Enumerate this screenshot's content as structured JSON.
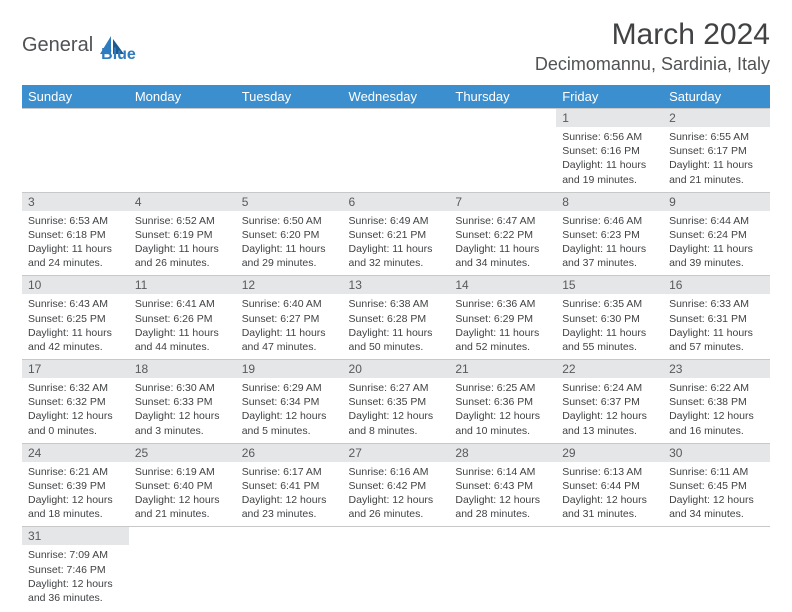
{
  "logo": {
    "name1": "General",
    "name2": "Blue"
  },
  "title": "March 2024",
  "location": "Decimomannu, Sardinia, Italy",
  "colors": {
    "header_bg": "#3b8fce",
    "header_text": "#ffffff",
    "daynum_bg": "#e4e6e8",
    "text": "#404244",
    "border": "#c8c8c8"
  },
  "weekdays": [
    "Sunday",
    "Monday",
    "Tuesday",
    "Wednesday",
    "Thursday",
    "Friday",
    "Saturday"
  ],
  "weeks": [
    [
      null,
      null,
      null,
      null,
      null,
      {
        "d": "1",
        "sr": "6:56 AM",
        "ss": "6:16 PM",
        "dl1": "11 hours",
        "dl2": "and 19 minutes."
      },
      {
        "d": "2",
        "sr": "6:55 AM",
        "ss": "6:17 PM",
        "dl1": "11 hours",
        "dl2": "and 21 minutes."
      }
    ],
    [
      {
        "d": "3",
        "sr": "6:53 AM",
        "ss": "6:18 PM",
        "dl1": "11 hours",
        "dl2": "and 24 minutes."
      },
      {
        "d": "4",
        "sr": "6:52 AM",
        "ss": "6:19 PM",
        "dl1": "11 hours",
        "dl2": "and 26 minutes."
      },
      {
        "d": "5",
        "sr": "6:50 AM",
        "ss": "6:20 PM",
        "dl1": "11 hours",
        "dl2": "and 29 minutes."
      },
      {
        "d": "6",
        "sr": "6:49 AM",
        "ss": "6:21 PM",
        "dl1": "11 hours",
        "dl2": "and 32 minutes."
      },
      {
        "d": "7",
        "sr": "6:47 AM",
        "ss": "6:22 PM",
        "dl1": "11 hours",
        "dl2": "and 34 minutes."
      },
      {
        "d": "8",
        "sr": "6:46 AM",
        "ss": "6:23 PM",
        "dl1": "11 hours",
        "dl2": "and 37 minutes."
      },
      {
        "d": "9",
        "sr": "6:44 AM",
        "ss": "6:24 PM",
        "dl1": "11 hours",
        "dl2": "and 39 minutes."
      }
    ],
    [
      {
        "d": "10",
        "sr": "6:43 AM",
        "ss": "6:25 PM",
        "dl1": "11 hours",
        "dl2": "and 42 minutes."
      },
      {
        "d": "11",
        "sr": "6:41 AM",
        "ss": "6:26 PM",
        "dl1": "11 hours",
        "dl2": "and 44 minutes."
      },
      {
        "d": "12",
        "sr": "6:40 AM",
        "ss": "6:27 PM",
        "dl1": "11 hours",
        "dl2": "and 47 minutes."
      },
      {
        "d": "13",
        "sr": "6:38 AM",
        "ss": "6:28 PM",
        "dl1": "11 hours",
        "dl2": "and 50 minutes."
      },
      {
        "d": "14",
        "sr": "6:36 AM",
        "ss": "6:29 PM",
        "dl1": "11 hours",
        "dl2": "and 52 minutes."
      },
      {
        "d": "15",
        "sr": "6:35 AM",
        "ss": "6:30 PM",
        "dl1": "11 hours",
        "dl2": "and 55 minutes."
      },
      {
        "d": "16",
        "sr": "6:33 AM",
        "ss": "6:31 PM",
        "dl1": "11 hours",
        "dl2": "and 57 minutes."
      }
    ],
    [
      {
        "d": "17",
        "sr": "6:32 AM",
        "ss": "6:32 PM",
        "dl1": "12 hours",
        "dl2": "and 0 minutes."
      },
      {
        "d": "18",
        "sr": "6:30 AM",
        "ss": "6:33 PM",
        "dl1": "12 hours",
        "dl2": "and 3 minutes."
      },
      {
        "d": "19",
        "sr": "6:29 AM",
        "ss": "6:34 PM",
        "dl1": "12 hours",
        "dl2": "and 5 minutes."
      },
      {
        "d": "20",
        "sr": "6:27 AM",
        "ss": "6:35 PM",
        "dl1": "12 hours",
        "dl2": "and 8 minutes."
      },
      {
        "d": "21",
        "sr": "6:25 AM",
        "ss": "6:36 PM",
        "dl1": "12 hours",
        "dl2": "and 10 minutes."
      },
      {
        "d": "22",
        "sr": "6:24 AM",
        "ss": "6:37 PM",
        "dl1": "12 hours",
        "dl2": "and 13 minutes."
      },
      {
        "d": "23",
        "sr": "6:22 AM",
        "ss": "6:38 PM",
        "dl1": "12 hours",
        "dl2": "and 16 minutes."
      }
    ],
    [
      {
        "d": "24",
        "sr": "6:21 AM",
        "ss": "6:39 PM",
        "dl1": "12 hours",
        "dl2": "and 18 minutes."
      },
      {
        "d": "25",
        "sr": "6:19 AM",
        "ss": "6:40 PM",
        "dl1": "12 hours",
        "dl2": "and 21 minutes."
      },
      {
        "d": "26",
        "sr": "6:17 AM",
        "ss": "6:41 PM",
        "dl1": "12 hours",
        "dl2": "and 23 minutes."
      },
      {
        "d": "27",
        "sr": "6:16 AM",
        "ss": "6:42 PM",
        "dl1": "12 hours",
        "dl2": "and 26 minutes."
      },
      {
        "d": "28",
        "sr": "6:14 AM",
        "ss": "6:43 PM",
        "dl1": "12 hours",
        "dl2": "and 28 minutes."
      },
      {
        "d": "29",
        "sr": "6:13 AM",
        "ss": "6:44 PM",
        "dl1": "12 hours",
        "dl2": "and 31 minutes."
      },
      {
        "d": "30",
        "sr": "6:11 AM",
        "ss": "6:45 PM",
        "dl1": "12 hours",
        "dl2": "and 34 minutes."
      }
    ],
    [
      {
        "d": "31",
        "sr": "7:09 AM",
        "ss": "7:46 PM",
        "dl1": "12 hours",
        "dl2": "and 36 minutes."
      },
      null,
      null,
      null,
      null,
      null,
      null
    ]
  ],
  "labels": {
    "sunrise": "Sunrise:",
    "sunset": "Sunset:",
    "daylight": "Daylight:"
  }
}
